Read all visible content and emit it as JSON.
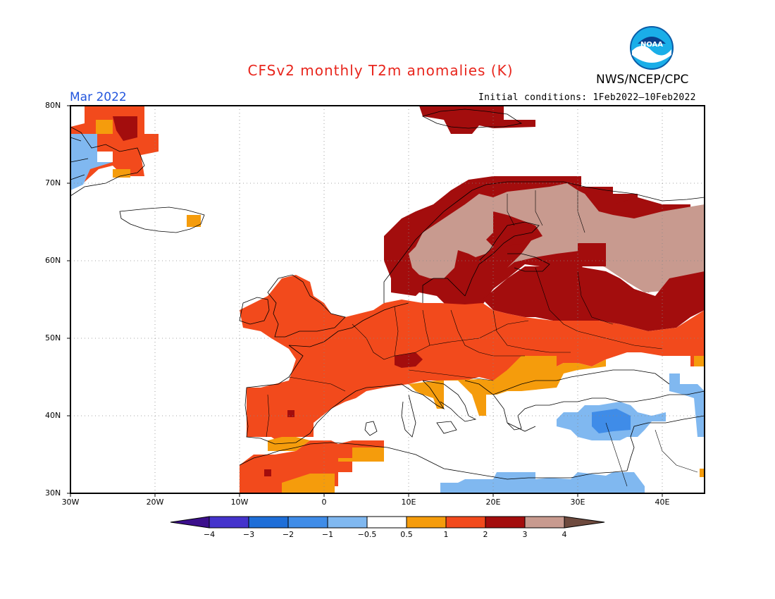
{
  "title": "CFSv2 monthly T2m anomalies (K)",
  "agency": "NWS/NCEP/CPC",
  "logo_text": "NOAA",
  "valid_month": "Mar 2022",
  "initial_conditions": "Initial conditions: 1Feb2022–10Feb2022",
  "map": {
    "lat_labels": [
      "80N",
      "70N",
      "60N",
      "50N",
      "40N",
      "30N"
    ],
    "lon_labels": [
      "30W",
      "20W",
      "10W",
      "0",
      "10E",
      "20E",
      "30E",
      "40E"
    ],
    "extent": {
      "lon_min": -30,
      "lon_max": 45,
      "lat_min": 30,
      "lat_max": 80
    }
  },
  "colorbar": {
    "labels": [
      "−4",
      "−3",
      "−2",
      "−1",
      "−0.5",
      "0.5",
      "1",
      "2",
      "3",
      "4"
    ],
    "colors": [
      "#3b0f8c",
      "#4433cc",
      "#1e6ed8",
      "#3f8ce8",
      "#80b8f0",
      "#ffffff",
      "#f59c0c",
      "#f24a1c",
      "#a30d0d",
      "#c89a8f",
      "#6e4a3e"
    ]
  }
}
